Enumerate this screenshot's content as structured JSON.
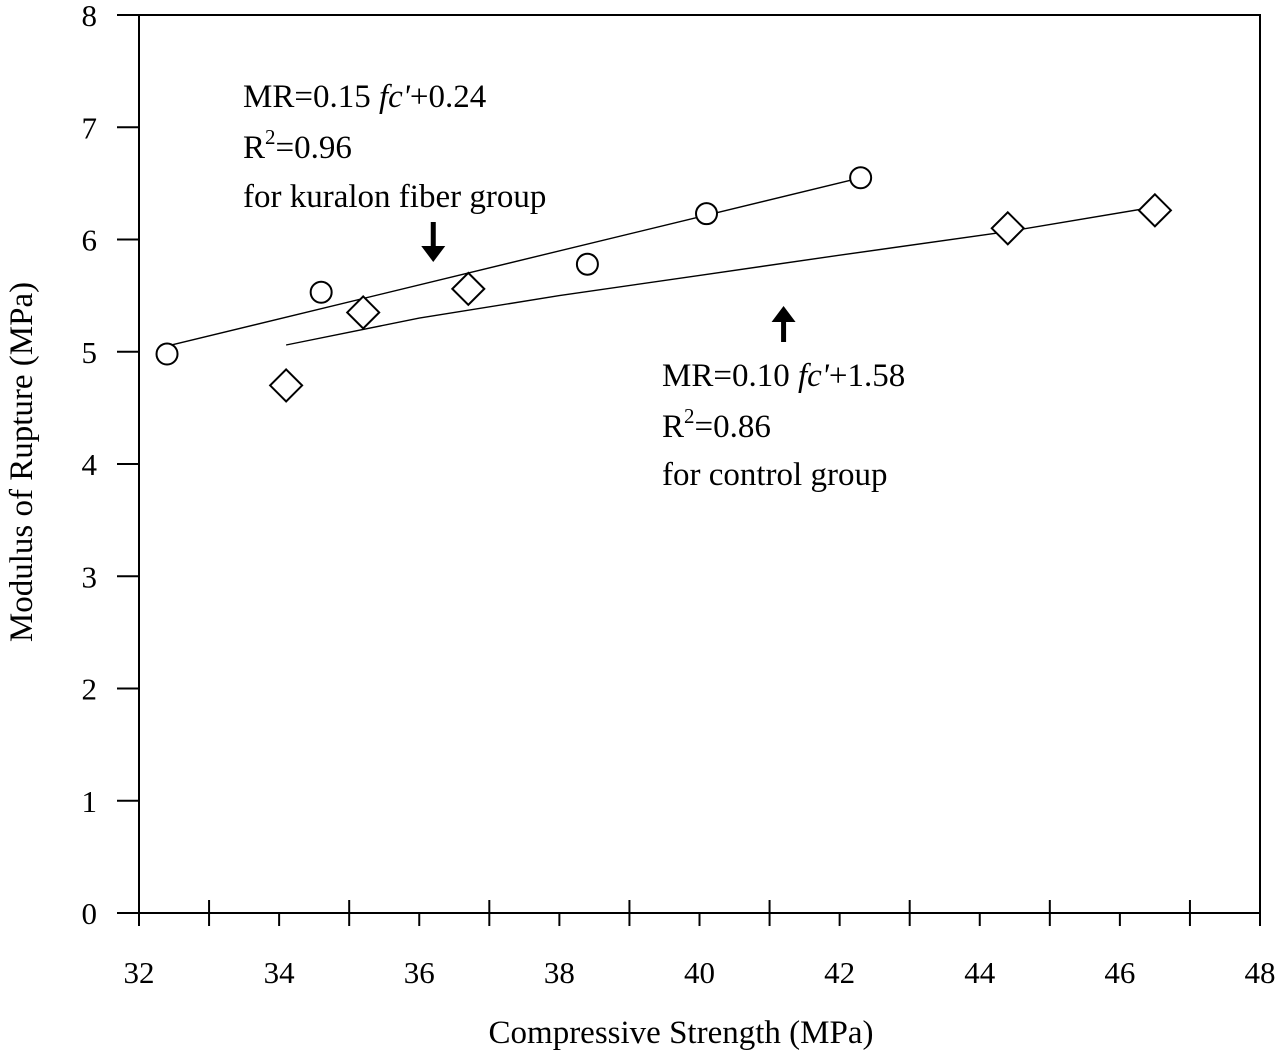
{
  "chart_data": {
    "type": "scatter",
    "title": "",
    "xlabel": "Compressive Strength (MPa)",
    "ylabel": "Modulus of Rupture (MPa)",
    "xlim": [
      32,
      48
    ],
    "ylim": [
      0,
      8
    ],
    "xticks": [
      32,
      34,
      36,
      38,
      40,
      42,
      44,
      46,
      48
    ],
    "xtick_labels": [
      "32",
      "34",
      "36",
      "38",
      "40",
      "42",
      "44",
      "46",
      "48"
    ],
    "yticks": [
      0,
      1,
      2,
      3,
      4,
      5,
      6,
      7,
      8
    ],
    "ytick_labels": [
      "0",
      "1",
      "2",
      "3",
      "4",
      "5",
      "6",
      "7",
      "8"
    ],
    "grid": false,
    "series": [
      {
        "marker": "circle",
        "points": [
          {
            "x": 32.4,
            "y": 4.98
          },
          {
            "x": 34.6,
            "y": 5.53
          },
          {
            "x": 38.4,
            "y": 5.78
          },
          {
            "x": 40.1,
            "y": 6.23
          },
          {
            "x": 42.3,
            "y": 6.55
          }
        ],
        "fit": {
          "x": [
            32.4,
            42.3
          ],
          "y": [
            5.05,
            6.55
          ]
        }
      },
      {
        "marker": "diamond",
        "points": [
          {
            "x": 34.1,
            "y": 4.7
          },
          {
            "x": 35.2,
            "y": 5.35
          },
          {
            "x": 36.7,
            "y": 5.56
          },
          {
            "x": 44.4,
            "y": 6.1
          },
          {
            "x": 46.5,
            "y": 6.26
          }
        ],
        "fit": {
          "x": [
            34.1,
            36.0,
            38.0,
            40.0,
            42.0,
            44.4,
            46.5
          ],
          "y": [
            5.06,
            5.3,
            5.5,
            5.68,
            5.86,
            6.07,
            6.29
          ]
        }
      }
    ],
    "annotations": [
      {
        "lines": [
          {
            "prefix": "MR=0.15 ",
            "italic": "fc'",
            "suffix": "+0.24"
          },
          {
            "base": "R",
            "sup": "2",
            "rest": "=0.96"
          },
          {
            "text": "for kuralon fiber group"
          }
        ],
        "arrow": {
          "direction": "down",
          "x": 36.2
        }
      },
      {
        "lines": [
          {
            "prefix": "MR=0.10 ",
            "italic": "fc'",
            "suffix": "+1.58"
          },
          {
            "base": "R",
            "sup": "2",
            "rest": "=0.86"
          },
          {
            "text": "for control group"
          }
        ],
        "arrow": {
          "direction": "up",
          "x": 41.2
        }
      }
    ]
  }
}
